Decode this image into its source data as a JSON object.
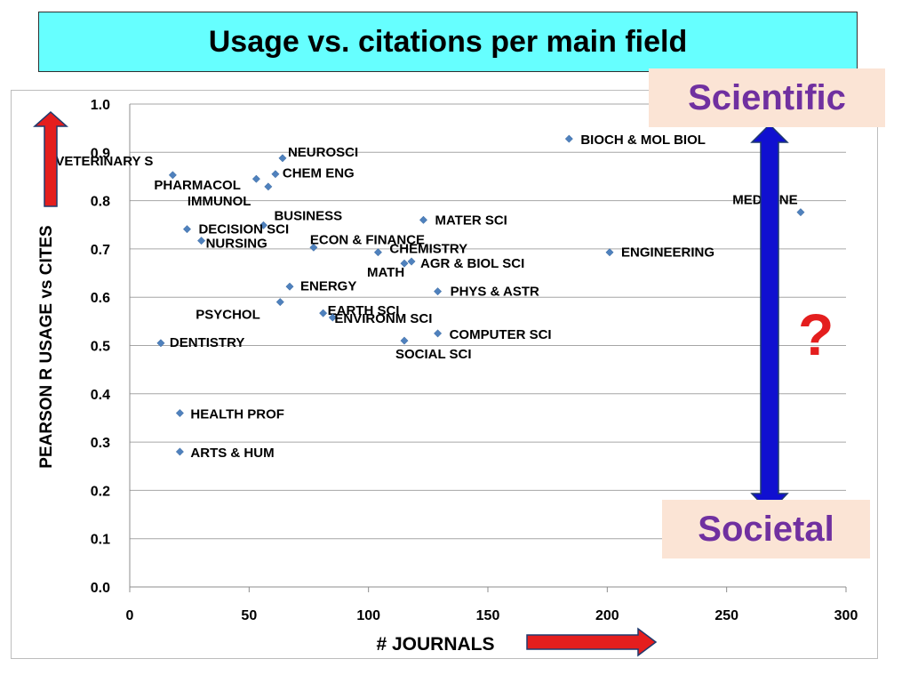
{
  "title": "Usage vs. citations per main field",
  "callouts": {
    "top": "Scientific",
    "bottom": "Societal",
    "question": "?"
  },
  "colors": {
    "title_bg": "#66ffff",
    "marker": "#4f81bd",
    "arrow_red": "#e41e1e",
    "arrow_blue": "#1010d0",
    "callout_text": "#7030a0",
    "callout_bg": "#fbe4d5"
  },
  "chart_data": {
    "type": "scatter",
    "xlabel": "# JOURNALS",
    "ylabel": "PEARSON R USAGE vs CITES",
    "xlim": [
      0,
      300
    ],
    "ylim": [
      0.0,
      1.0
    ],
    "x_ticks": [
      "0",
      "50",
      "100",
      "150",
      "200",
      "250",
      "300"
    ],
    "y_ticks": [
      "0.0",
      "0.1",
      "0.2",
      "0.3",
      "0.4",
      "0.5",
      "0.6",
      "0.7",
      "0.8",
      "0.9",
      "1.0"
    ],
    "grid": "horizontal",
    "points": [
      {
        "label": "BIOCH & MOL BIOL",
        "x": 184,
        "y": 0.928
      },
      {
        "label": "MEDICINE",
        "x": 281,
        "y": 0.776
      },
      {
        "label": "NEUROSCI",
        "x": 64,
        "y": 0.888
      },
      {
        "label": "VETERINARY S",
        "x": 18,
        "y": 0.853
      },
      {
        "label": "CHEM ENG",
        "x": 61,
        "y": 0.855
      },
      {
        "label": "PHARMACOL",
        "x": 53,
        "y": 0.845
      },
      {
        "label": "IMMUNOL",
        "x": 58,
        "y": 0.829
      },
      {
        "label": "BUSINESS",
        "x": 56,
        "y": 0.749
      },
      {
        "label": "DECISION SCI",
        "x": 24,
        "y": 0.741
      },
      {
        "label": "NURSING",
        "x": 30,
        "y": 0.717
      },
      {
        "label": "ECON & FINANCE",
        "x": 77,
        "y": 0.703
      },
      {
        "label": "MATER SCI",
        "x": 123,
        "y": 0.76
      },
      {
        "label": "CHEMISTRY",
        "x": 104,
        "y": 0.693
      },
      {
        "label": "ENGINEERING",
        "x": 201,
        "y": 0.693
      },
      {
        "label": "AGR & BIOL SCI",
        "x": 118,
        "y": 0.674
      },
      {
        "label": "MATH",
        "x": 115,
        "y": 0.67
      },
      {
        "label": "PHYS & ASTR",
        "x": 129,
        "y": 0.612
      },
      {
        "label": "ENERGY",
        "x": 67,
        "y": 0.622
      },
      {
        "label": "PSYCHOL",
        "x": 63,
        "y": 0.59
      },
      {
        "label": "EARTH SCI",
        "x": 81,
        "y": 0.567
      },
      {
        "label": "ENVIRONM SCI",
        "x": 85,
        "y": 0.558
      },
      {
        "label": "COMPUTER SCI",
        "x": 129,
        "y": 0.525
      },
      {
        "label": "SOCIAL SCI",
        "x": 115,
        "y": 0.51
      },
      {
        "label": "DENTISTRY",
        "x": 13,
        "y": 0.505
      },
      {
        "label": "HEALTH PROF",
        "x": 21,
        "y": 0.36
      },
      {
        "label": "ARTS & HUM",
        "x": 21,
        "y": 0.28
      }
    ]
  }
}
